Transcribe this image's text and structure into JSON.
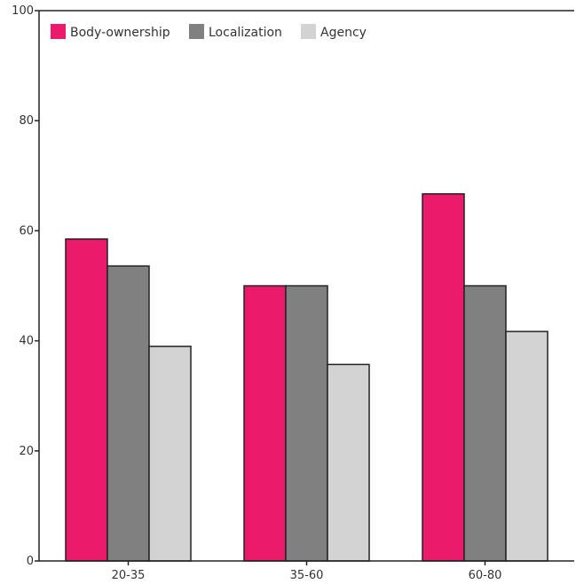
{
  "chart_data": {
    "type": "bar",
    "categories": [
      "20-35",
      "35-60",
      "60-80"
    ],
    "series": [
      {
        "name": "Body-ownership",
        "color": "#ec1a6b",
        "values": [
          58.5,
          50.0,
          66.7
        ]
      },
      {
        "name": "Localization",
        "color": "#808080",
        "values": [
          53.6,
          50.0,
          50.0
        ]
      },
      {
        "name": "Agency",
        "color": "#d3d3d3",
        "values": [
          39.0,
          35.7,
          41.7
        ]
      }
    ],
    "y_ticks": [
      "0",
      "20",
      "40",
      "60",
      "80",
      "100"
    ],
    "ylim": [
      0,
      100
    ],
    "grid": false,
    "legend_position": "top-left"
  }
}
